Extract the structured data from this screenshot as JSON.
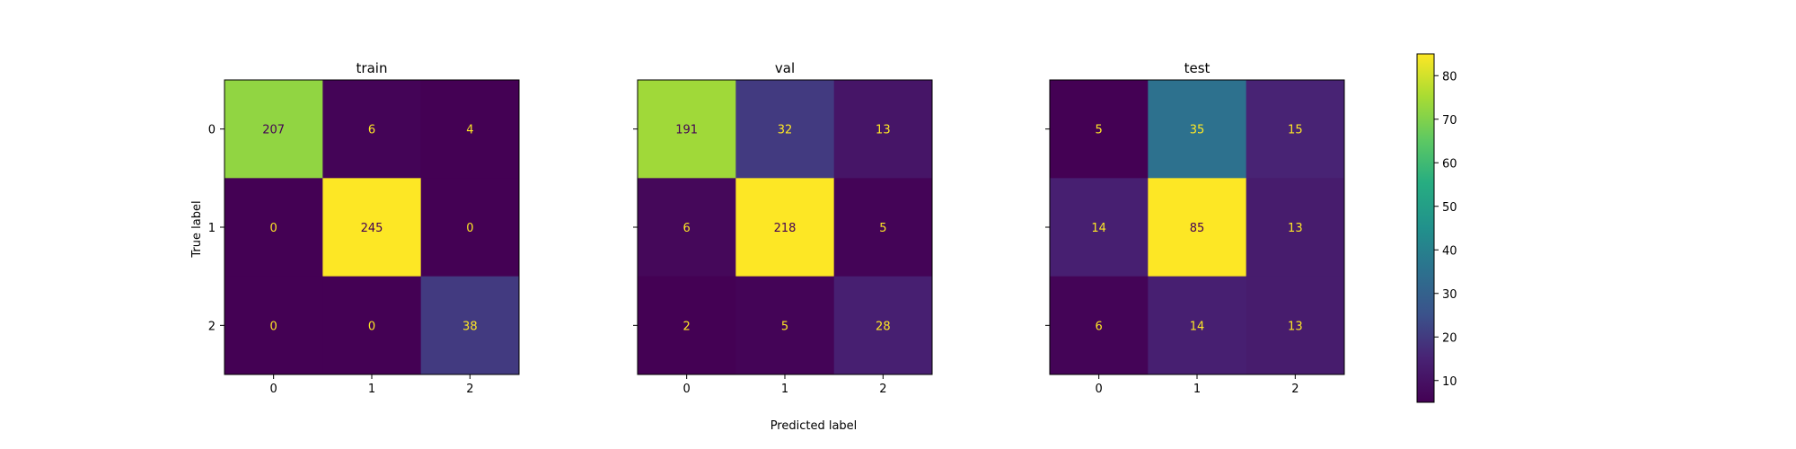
{
  "figure": {
    "xlabel": "Predicted label",
    "ylabel": "True label"
  },
  "colorbar": {
    "vmin": 5,
    "vmax": 85,
    "ticks": [
      10,
      20,
      30,
      40,
      50,
      60,
      70,
      80
    ],
    "colormap": "viridis"
  },
  "chart_data": [
    {
      "type": "heatmap",
      "title": "train",
      "x_categories": [
        "0",
        "1",
        "2"
      ],
      "y_categories": [
        "0",
        "1",
        "2"
      ],
      "values": [
        [
          207,
          6,
          4
        ],
        [
          0,
          245,
          0
        ],
        [
          0,
          0,
          38
        ]
      ],
      "color_values": [
        [
          72,
          6,
          4
        ],
        [
          0,
          85,
          0
        ],
        [
          0,
          0,
          20
        ]
      ]
    },
    {
      "type": "heatmap",
      "title": "val",
      "x_categories": [
        "0",
        "1",
        "2"
      ],
      "y_categories": [
        "0",
        "1",
        "2"
      ],
      "values": [
        [
          191,
          32,
          13
        ],
        [
          6,
          218,
          5
        ],
        [
          2,
          5,
          28
        ]
      ],
      "color_values": [
        [
          74,
          20,
          11
        ],
        [
          7,
          85,
          6
        ],
        [
          4,
          6,
          14
        ]
      ]
    },
    {
      "type": "heatmap",
      "title": "test",
      "x_categories": [
        "0",
        "1",
        "2"
      ],
      "y_categories": [
        "0",
        "1",
        "2"
      ],
      "values": [
        [
          5,
          35,
          15
        ],
        [
          14,
          85,
          13
        ],
        [
          6,
          14,
          13
        ]
      ],
      "color_values": [
        [
          5,
          35,
          15
        ],
        [
          14,
          85,
          13
        ],
        [
          6,
          14,
          13
        ]
      ]
    }
  ],
  "colors": {
    "text_on_dark": "#fde725",
    "text_on_light": "#440154"
  }
}
